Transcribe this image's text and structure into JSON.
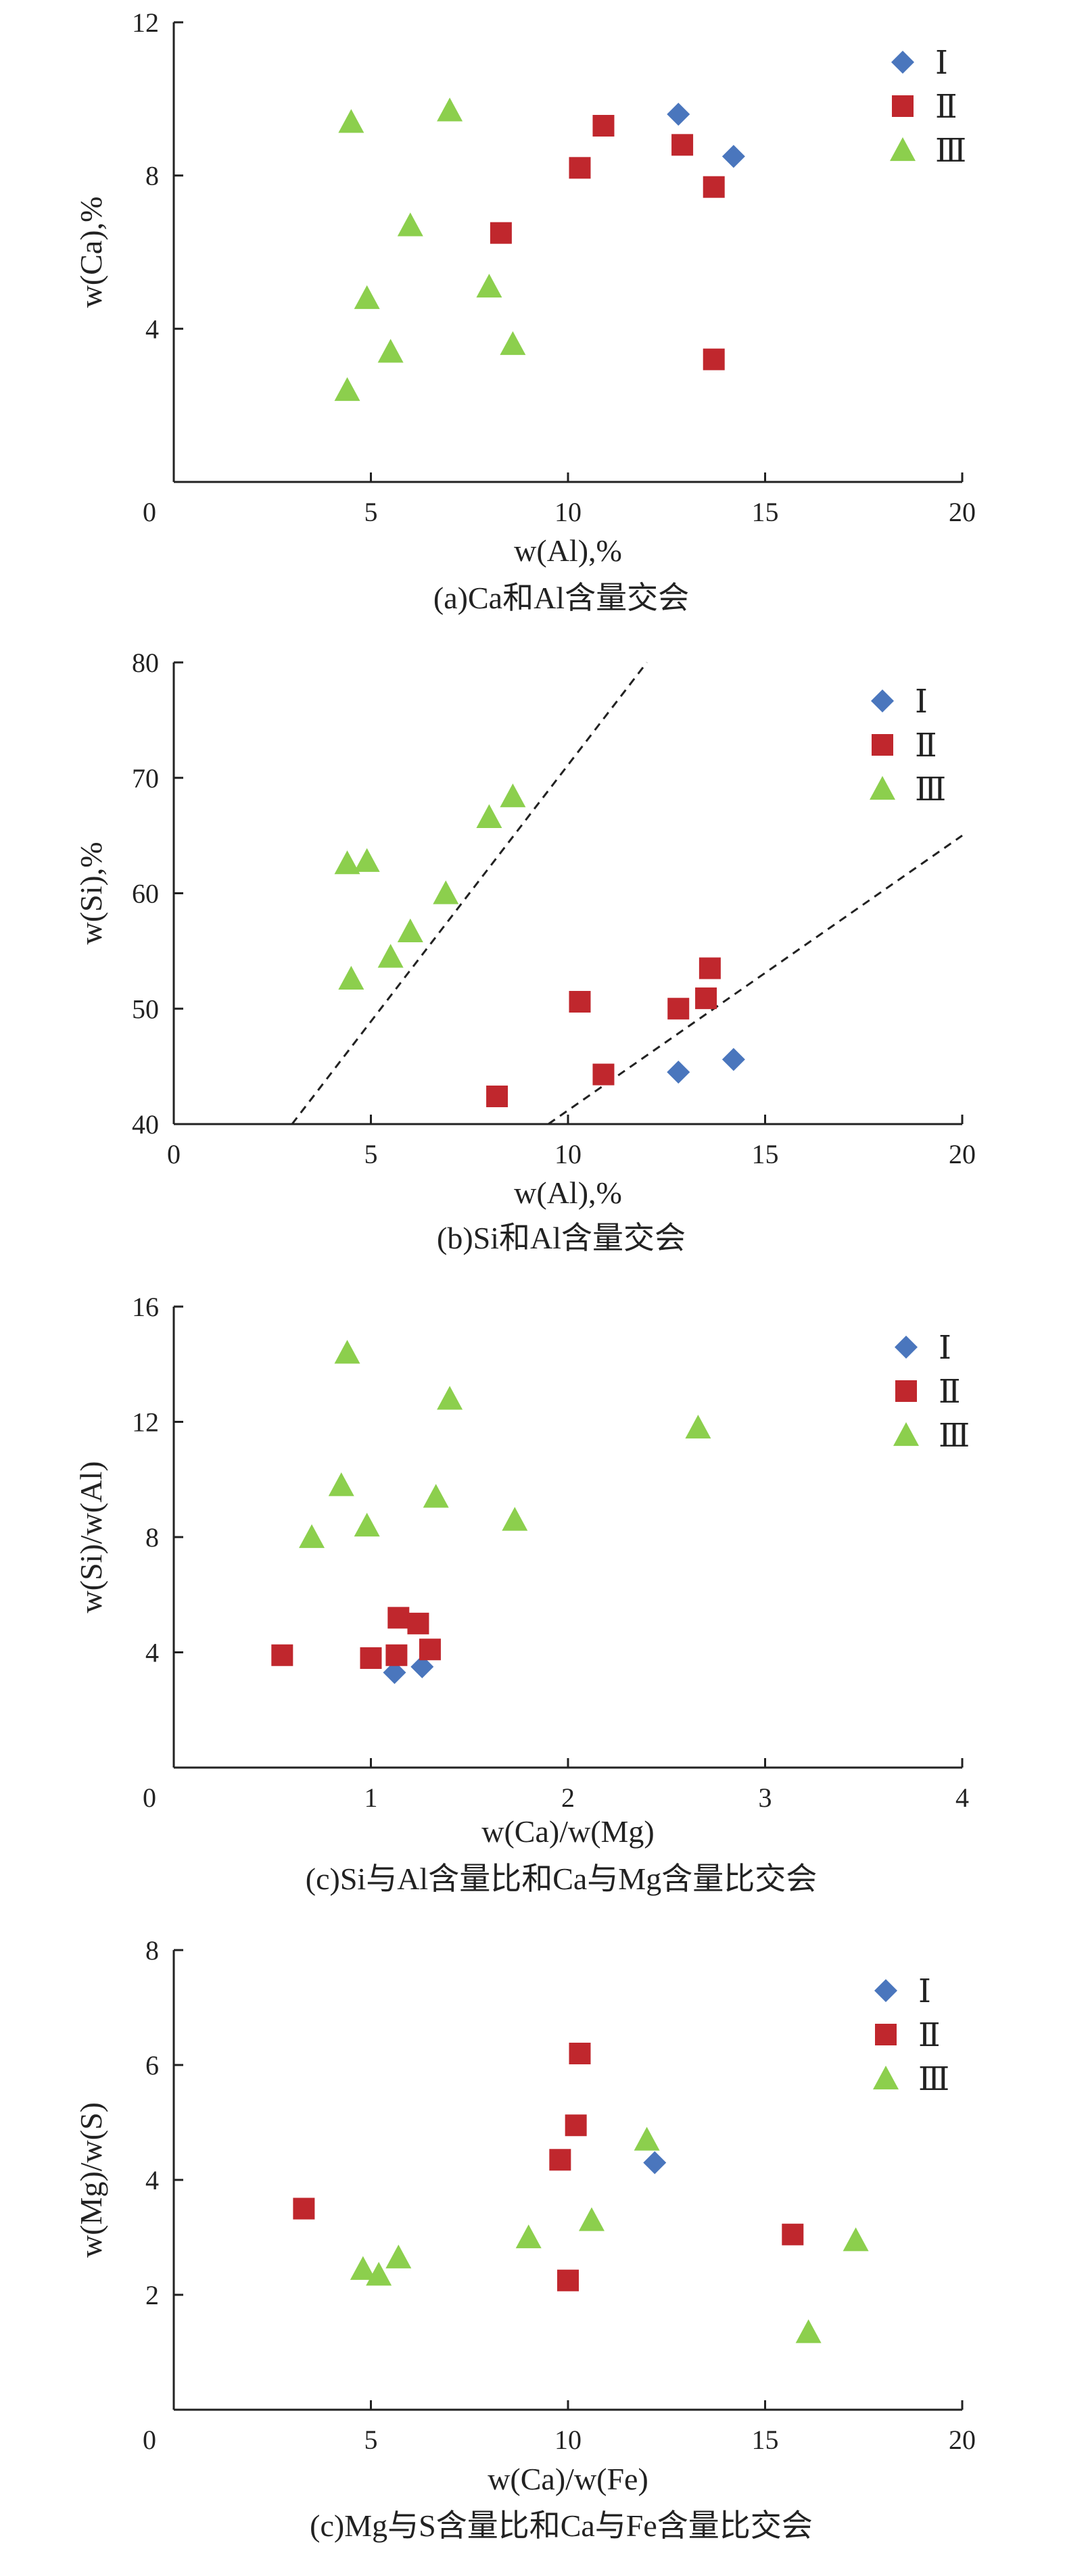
{
  "legend_labels": [
    "Ⅰ",
    "Ⅱ",
    "Ⅲ"
  ],
  "colors": {
    "I": "#4a76bd",
    "II": "#c0272d",
    "III": "#8ccf4d",
    "axis": "#222222",
    "text": "#222222"
  },
  "chart_data": [
    {
      "id": "a",
      "type": "scatter",
      "title": "(a)Ca和Al含量交会",
      "xlabel": "w(Al),%",
      "ylabel": "w(Ca),%",
      "xlim": [
        0,
        20
      ],
      "ylim": [
        0,
        12
      ],
      "xticks": [
        0,
        5,
        10,
        15,
        20
      ],
      "yticks": [
        4,
        8,
        12
      ],
      "origin_label": "0",
      "series": [
        {
          "name": "Ⅰ",
          "marker": "diamond",
          "points": [
            [
              12.8,
              9.6
            ],
            [
              14.2,
              8.5
            ]
          ]
        },
        {
          "name": "Ⅱ",
          "marker": "square",
          "points": [
            [
              10.9,
              9.3
            ],
            [
              10.3,
              8.2
            ],
            [
              12.9,
              8.8
            ],
            [
              13.7,
              7.7
            ],
            [
              8.3,
              6.5
            ],
            [
              13.7,
              3.2
            ]
          ]
        },
        {
          "name": "Ⅲ",
          "marker": "triangle",
          "points": [
            [
              4.5,
              9.4
            ],
            [
              7.0,
              9.7
            ],
            [
              6.0,
              6.7
            ],
            [
              4.9,
              4.8
            ],
            [
              8.0,
              5.1
            ],
            [
              5.5,
              3.4
            ],
            [
              8.6,
              3.6
            ],
            [
              4.4,
              2.4
            ]
          ]
        }
      ],
      "lines": []
    },
    {
      "id": "b",
      "type": "scatter",
      "title": "(b)Si和Al含量交会",
      "xlabel": "w(Al),%",
      "ylabel": "w(Si),%",
      "xlim": [
        0,
        20
      ],
      "ylim": [
        40,
        80
      ],
      "xticks": [
        0,
        5,
        10,
        15,
        20
      ],
      "yticks": [
        40,
        50,
        60,
        70,
        80
      ],
      "origin_label": "",
      "series": [
        {
          "name": "Ⅰ",
          "marker": "diamond",
          "points": [
            [
              12.8,
              44.5
            ],
            [
              14.2,
              45.6
            ]
          ]
        },
        {
          "name": "Ⅱ",
          "marker": "square",
          "points": [
            [
              10.3,
              50.6
            ],
            [
              12.8,
              50.0
            ],
            [
              13.5,
              50.9
            ],
            [
              13.6,
              53.5
            ],
            [
              10.9,
              44.3
            ],
            [
              8.2,
              42.4
            ]
          ]
        },
        {
          "name": "Ⅲ",
          "marker": "triangle",
          "points": [
            [
              4.4,
              62.6
            ],
            [
              4.9,
              62.8
            ],
            [
              6.9,
              60.0
            ],
            [
              6.0,
              56.7
            ],
            [
              5.5,
              54.5
            ],
            [
              4.5,
              52.6
            ],
            [
              8.0,
              66.6
            ],
            [
              8.6,
              68.4
            ]
          ]
        }
      ],
      "lines": [
        {
          "x": [
            3.0,
            12.0
          ],
          "y": [
            40,
            80
          ]
        },
        {
          "x": [
            9.5,
            20.0
          ],
          "y": [
            40,
            65
          ]
        }
      ]
    },
    {
      "id": "c",
      "type": "scatter",
      "title": "(c)Si与Al含量比和Ca与Mg含量比交会",
      "xlabel": "w(Ca)/w(Mg)",
      "ylabel": "w(Si)/w(Al)",
      "xlim": [
        0,
        4
      ],
      "ylim": [
        0,
        16
      ],
      "xticks": [
        0,
        1,
        2,
        3,
        4
      ],
      "yticks": [
        4,
        8,
        12,
        16
      ],
      "origin_label": "0",
      "series": [
        {
          "name": "Ⅰ",
          "marker": "diamond",
          "points": [
            [
              1.12,
              3.3
            ],
            [
              1.26,
              3.5
            ]
          ]
        },
        {
          "name": "Ⅱ",
          "marker": "square",
          "points": [
            [
              0.55,
              3.9
            ],
            [
              1.0,
              3.8
            ],
            [
              1.13,
              3.9
            ],
            [
              1.3,
              4.1
            ],
            [
              1.14,
              5.2
            ],
            [
              1.24,
              5.0
            ]
          ]
        },
        {
          "name": "Ⅲ",
          "marker": "triangle",
          "points": [
            [
              0.88,
              14.4
            ],
            [
              1.4,
              12.8
            ],
            [
              2.66,
              11.8
            ],
            [
              0.85,
              9.8
            ],
            [
              0.98,
              8.4
            ],
            [
              1.33,
              9.4
            ],
            [
              0.7,
              8.0
            ],
            [
              1.73,
              8.6
            ]
          ]
        }
      ],
      "lines": []
    },
    {
      "id": "d",
      "type": "scatter",
      "title": "(c)Mg与S含量比和Ca与Fe含量比交会",
      "xlabel": "w(Ca)/w(Fe)",
      "ylabel": "w(Mg)/w(S)",
      "xlim": [
        0,
        20
      ],
      "ylim": [
        0,
        8
      ],
      "xticks": [
        0,
        5,
        10,
        15,
        20
      ],
      "yticks": [
        2,
        4,
        6,
        8
      ],
      "origin_label": "0",
      "series": [
        {
          "name": "Ⅰ",
          "marker": "diamond",
          "points": [
            [
              12.2,
              4.3
            ]
          ]
        },
        {
          "name": "Ⅱ",
          "marker": "square",
          "points": [
            [
              3.3,
              3.5
            ],
            [
              10.3,
              6.2
            ],
            [
              10.2,
              4.95
            ],
            [
              9.8,
              4.35
            ],
            [
              10.0,
              2.25
            ],
            [
              15.7,
              3.05
            ]
          ]
        },
        {
          "name": "Ⅲ",
          "marker": "triangle",
          "points": [
            [
              12.0,
              4.7
            ],
            [
              10.6,
              3.3
            ],
            [
              9.0,
              3.0
            ],
            [
              5.7,
              2.65
            ],
            [
              4.8,
              2.45
            ],
            [
              5.2,
              2.35
            ],
            [
              16.1,
              1.35
            ],
            [
              17.3,
              2.95
            ]
          ]
        }
      ],
      "lines": []
    }
  ]
}
